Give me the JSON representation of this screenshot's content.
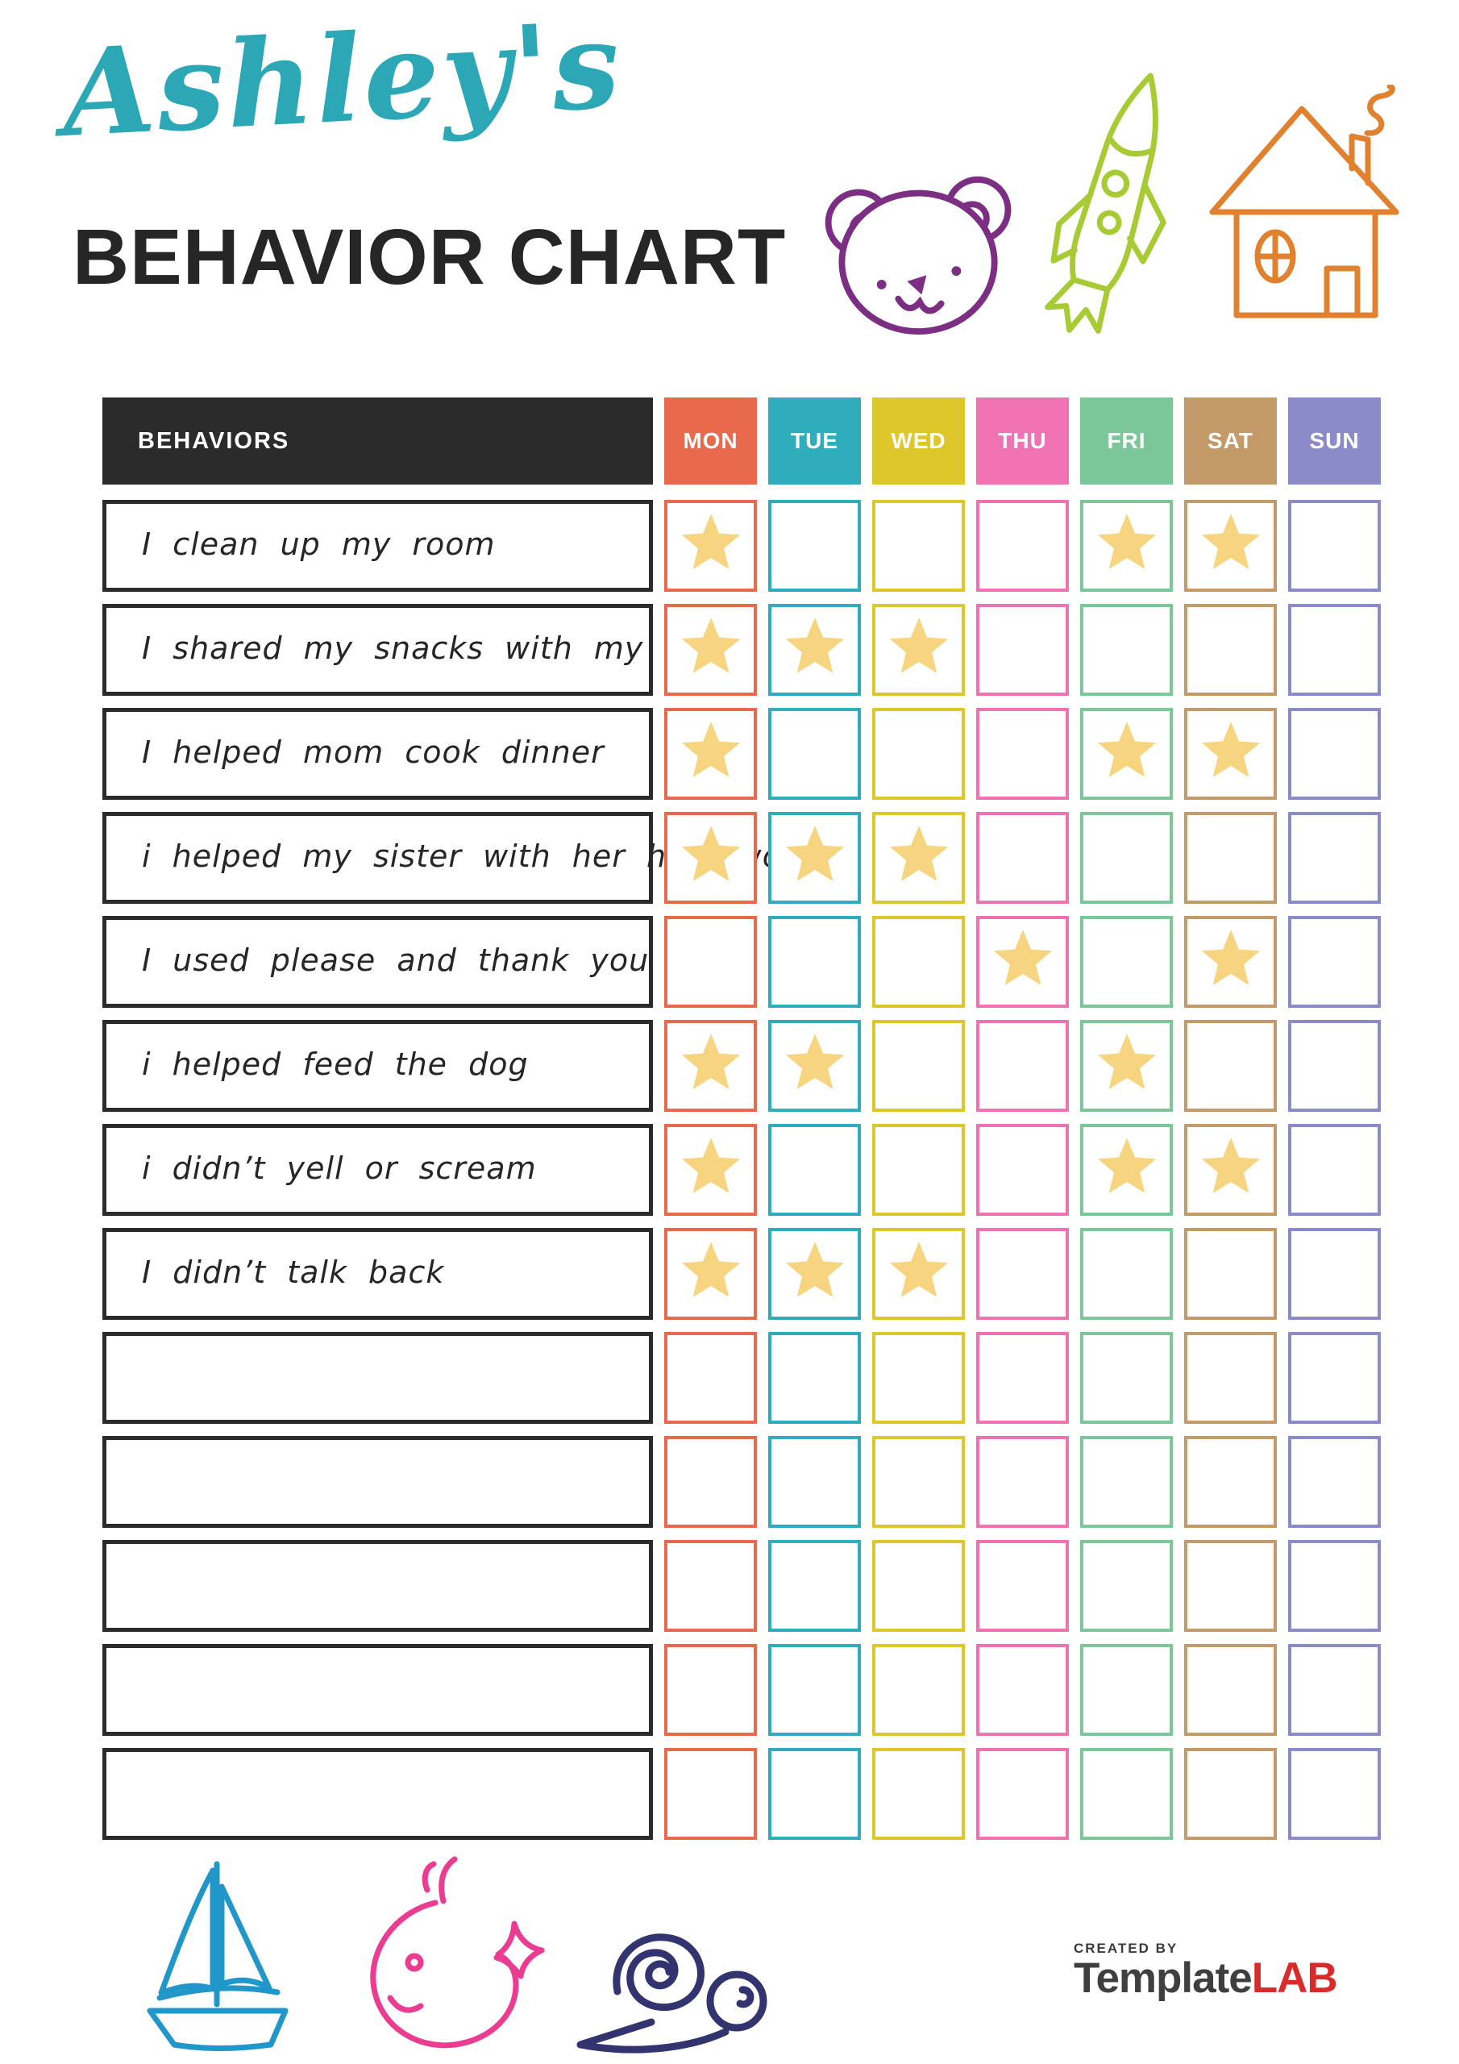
{
  "page": {
    "script_title": "Ashley's",
    "main_title": "BEHAVIOR CHART"
  },
  "colors": {
    "title_script": "#2ba7b6",
    "ink": "#262626",
    "row_border": "#2b2b2b",
    "star": "#f7d47f",
    "brand_gray": "#3f3f3f",
    "brand_red": "#d92b2b"
  },
  "decorations": {
    "top_icons": [
      {
        "name": "bear-icon",
        "color": "#7c2f82"
      },
      {
        "name": "rocket-icon",
        "color": "#a8cb35"
      },
      {
        "name": "house-icon",
        "color": "#e0812f"
      }
    ],
    "bottom_icons": [
      {
        "name": "sailboat-icon",
        "color": "#2196c9"
      },
      {
        "name": "whale-icon",
        "color": "#ea3d92"
      },
      {
        "name": "snail-icon",
        "color": "#32336f"
      }
    ]
  },
  "table": {
    "behaviors_header": "BEHAVIORS",
    "header_bg": "#2b2b2b",
    "days": [
      {
        "label": "MON",
        "color": "#e9694c"
      },
      {
        "label": "TUE",
        "color": "#2fadbc"
      },
      {
        "label": "WED",
        "color": "#ddc72b"
      },
      {
        "label": "THU",
        "color": "#ef72b2"
      },
      {
        "label": "FRI",
        "color": "#7cc79a"
      },
      {
        "label": "SAT",
        "color": "#c49a68"
      },
      {
        "label": "SUN",
        "color": "#8b8bc9"
      }
    ],
    "star": {
      "icon": "star-icon",
      "color": "#f7d47f"
    },
    "rows": [
      {
        "behavior": "I clean up my room",
        "stars": [
          "MON",
          "FRI",
          "SAT"
        ]
      },
      {
        "behavior": "I shared my snacks with my sister",
        "stars": [
          "MON",
          "TUE",
          "WED"
        ]
      },
      {
        "behavior": "I helped mom cook dinner",
        "stars": [
          "MON",
          "FRI",
          "SAT"
        ]
      },
      {
        "behavior": "i helped my sister with her homework",
        "stars": [
          "MON",
          "TUE",
          "WED"
        ]
      },
      {
        "behavior": "I used please and thank you",
        "stars": [
          "THU",
          "SAT"
        ]
      },
      {
        "behavior": "i helped feed the dog",
        "stars": [
          "MON",
          "TUE",
          "FRI"
        ]
      },
      {
        "behavior": "i didn’t yell or scream",
        "stars": [
          "MON",
          "FRI",
          "SAT"
        ]
      },
      {
        "behavior": "I didn’t talk back",
        "stars": [
          "MON",
          "TUE",
          "WED"
        ]
      },
      {
        "behavior": "",
        "stars": []
      },
      {
        "behavior": "",
        "stars": []
      },
      {
        "behavior": "",
        "stars": []
      },
      {
        "behavior": "",
        "stars": []
      },
      {
        "behavior": "",
        "stars": []
      }
    ]
  },
  "footer": {
    "created_by": "CREATED BY",
    "brand_name": "Template",
    "brand_suffix": "LAB"
  }
}
